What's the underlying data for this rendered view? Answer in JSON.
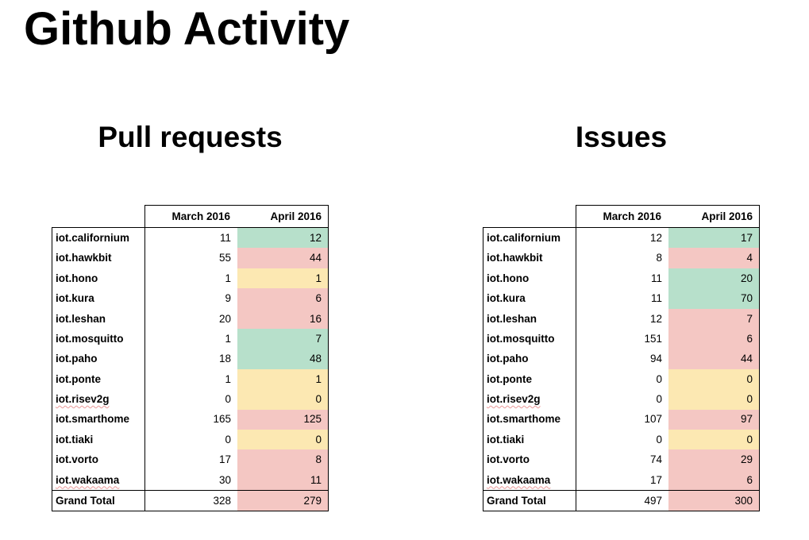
{
  "slide": {
    "title": "Github Activity"
  },
  "colors": {
    "increase_bg": "#b7e0cb",
    "decrease_bg": "#f4c7c3",
    "unchanged_bg": "#fce8b2",
    "border": "#000000",
    "squiggle": "#ea9999"
  },
  "tables": [
    {
      "title": "Pull requests",
      "columns": [
        "March 2016",
        "April 2016"
      ],
      "rows": [
        {
          "label": "iot.californium",
          "march": 11,
          "april": 12,
          "trend": "up",
          "misspelled": false
        },
        {
          "label": "iot.hawkbit",
          "march": 55,
          "april": 44,
          "trend": "down",
          "misspelled": false
        },
        {
          "label": "iot.hono",
          "march": 1,
          "april": 1,
          "trend": "same",
          "misspelled": false
        },
        {
          "label": "iot.kura",
          "march": 9,
          "april": 6,
          "trend": "down",
          "misspelled": false
        },
        {
          "label": "iot.leshan",
          "march": 20,
          "april": 16,
          "trend": "down",
          "misspelled": false
        },
        {
          "label": "iot.mosquitto",
          "march": 1,
          "april": 7,
          "trend": "up",
          "misspelled": false
        },
        {
          "label": "iot.paho",
          "march": 18,
          "april": 48,
          "trend": "up",
          "misspelled": false
        },
        {
          "label": "iot.ponte",
          "march": 1,
          "april": 1,
          "trend": "same",
          "misspelled": false
        },
        {
          "label": "iot.risev2g",
          "march": 0,
          "april": 0,
          "trend": "same",
          "misspelled": true
        },
        {
          "label": "iot.smarthome",
          "march": 165,
          "april": 125,
          "trend": "down",
          "misspelled": false
        },
        {
          "label": "iot.tiaki",
          "march": 0,
          "april": 0,
          "trend": "same",
          "misspelled": false
        },
        {
          "label": "iot.vorto",
          "march": 17,
          "april": 8,
          "trend": "down",
          "misspelled": false
        },
        {
          "label": "iot.wakaama",
          "march": 30,
          "april": 11,
          "trend": "down",
          "misspelled": true
        }
      ],
      "total": {
        "label": "Grand Total",
        "march": 328,
        "april": 279,
        "trend": "down"
      }
    },
    {
      "title": "Issues",
      "columns": [
        "March 2016",
        "April 2016"
      ],
      "rows": [
        {
          "label": "iot.californium",
          "march": 12,
          "april": 17,
          "trend": "up",
          "misspelled": false
        },
        {
          "label": "iot.hawkbit",
          "march": 8,
          "april": 4,
          "trend": "down",
          "misspelled": false
        },
        {
          "label": "iot.hono",
          "march": 11,
          "april": 20,
          "trend": "up",
          "misspelled": false
        },
        {
          "label": "iot.kura",
          "march": 11,
          "april": 70,
          "trend": "up",
          "misspelled": false
        },
        {
          "label": "iot.leshan",
          "march": 12,
          "april": 7,
          "trend": "down",
          "misspelled": false
        },
        {
          "label": "iot.mosquitto",
          "march": 151,
          "april": 6,
          "trend": "down",
          "misspelled": false
        },
        {
          "label": "iot.paho",
          "march": 94,
          "april": 44,
          "trend": "down",
          "misspelled": false
        },
        {
          "label": "iot.ponte",
          "march": 0,
          "april": 0,
          "trend": "same",
          "misspelled": false
        },
        {
          "label": "iot.risev2g",
          "march": 0,
          "april": 0,
          "trend": "same",
          "misspelled": true
        },
        {
          "label": "iot.smarthome",
          "march": 107,
          "april": 97,
          "trend": "down",
          "misspelled": false
        },
        {
          "label": "iot.tiaki",
          "march": 0,
          "april": 0,
          "trend": "same",
          "misspelled": false
        },
        {
          "label": "iot.vorto",
          "march": 74,
          "april": 29,
          "trend": "down",
          "misspelled": false
        },
        {
          "label": "iot.wakaama",
          "march": 17,
          "april": 6,
          "trend": "down",
          "misspelled": true
        }
      ],
      "total": {
        "label": "Grand Total",
        "march": 497,
        "april": 300,
        "trend": "down"
      }
    }
  ]
}
